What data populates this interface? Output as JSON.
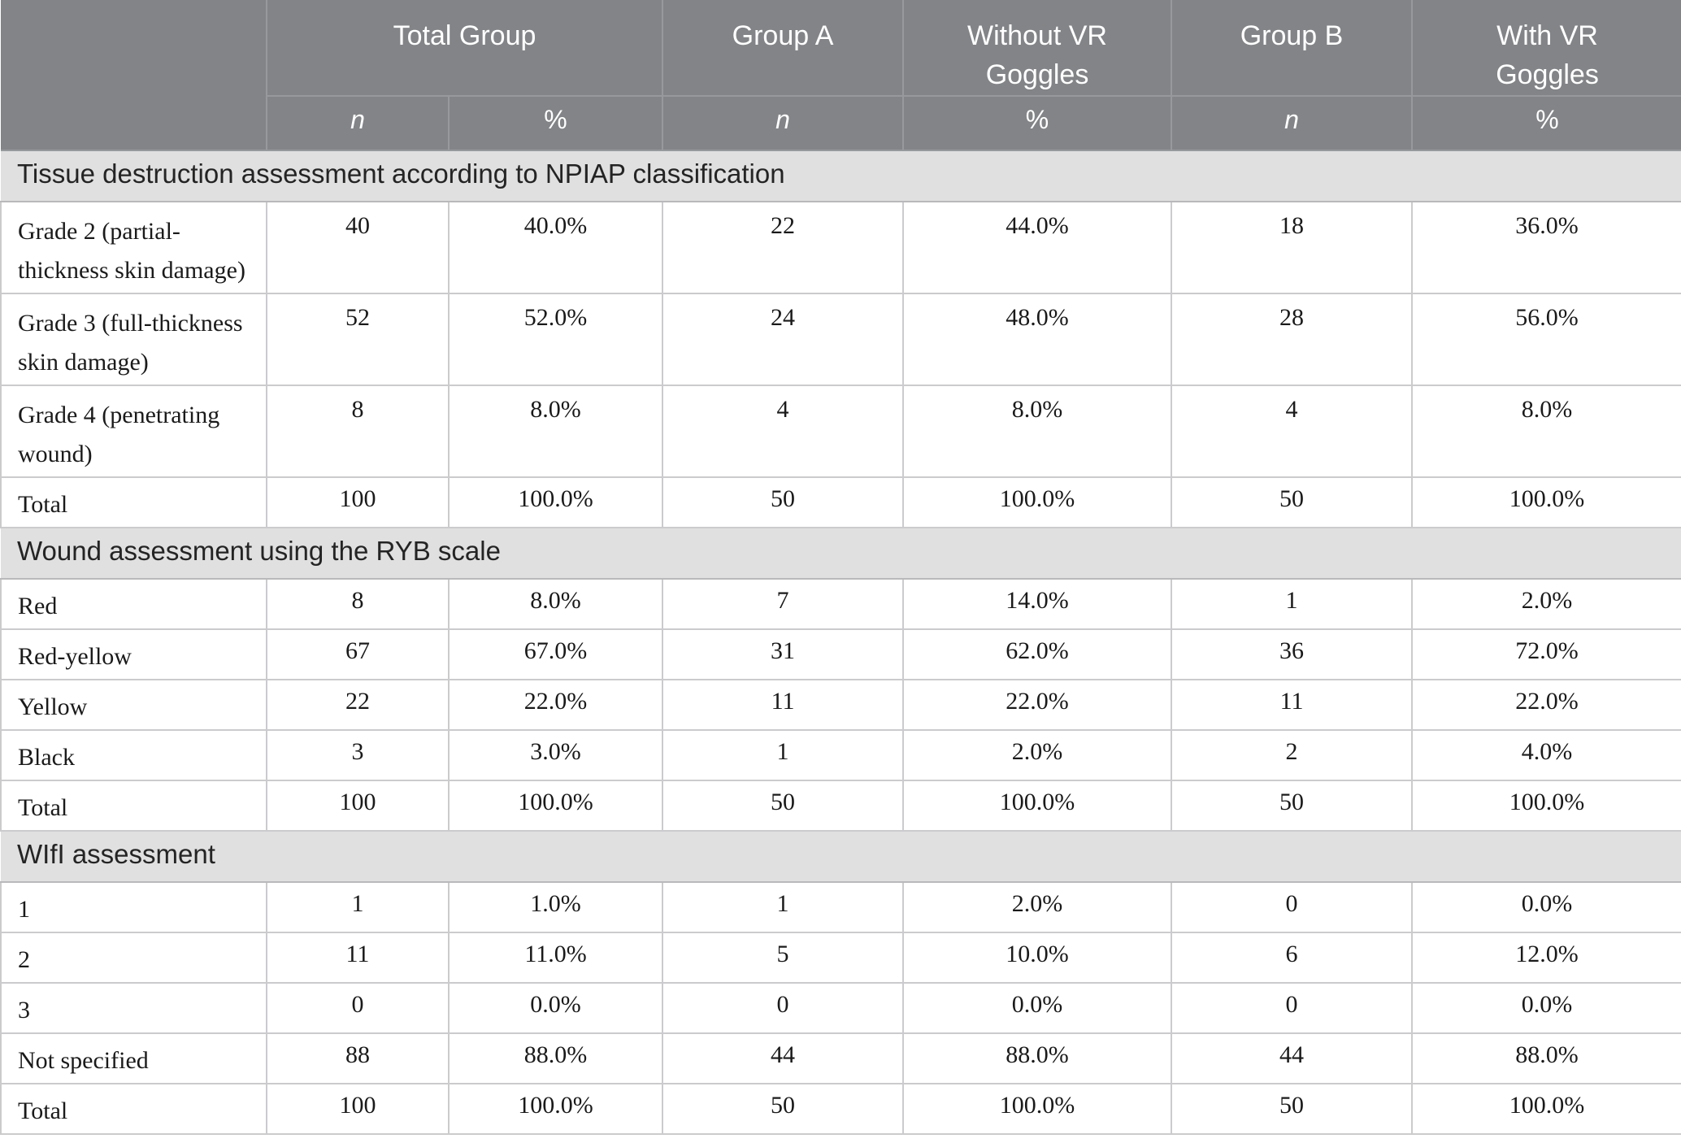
{
  "header": {
    "corner": "",
    "groups": [
      {
        "label": "Total Group"
      },
      {
        "label": "Group A"
      },
      {
        "label": "Without VR\nGoggles"
      },
      {
        "label": "Group B"
      },
      {
        "label": "With VR\nGoggles"
      }
    ],
    "subheaders": [
      "n",
      "%",
      "n",
      "%",
      "n",
      "%"
    ]
  },
  "sections": [
    {
      "title": "Tissue destruction assessment according to NPIAP classification",
      "rows": [
        {
          "label": "Grade 2 (partial-\nthickness skin damage)",
          "values": [
            "40",
            "40.0%",
            "22",
            "44.0%",
            "18",
            "36.0%"
          ]
        },
        {
          "label": "Grade 3 (full-thickness\nskin damage)",
          "values": [
            "52",
            "52.0%",
            "24",
            "48.0%",
            "28",
            "56.0%"
          ]
        },
        {
          "label": "Grade 4 (penetrating\nwound)",
          "values": [
            "8",
            "8.0%",
            "4",
            "8.0%",
            "4",
            "8.0%"
          ]
        },
        {
          "label": "Total",
          "values": [
            "100",
            "100.0%",
            "50",
            "100.0%",
            "50",
            "100.0%"
          ]
        }
      ]
    },
    {
      "title": "Wound assessment using the RYB scale",
      "rows": [
        {
          "label": "Red",
          "values": [
            "8",
            "8.0%",
            "7",
            "14.0%",
            "1",
            "2.0%"
          ]
        },
        {
          "label": "Red-yellow",
          "values": [
            "67",
            "67.0%",
            "31",
            "62.0%",
            "36",
            "72.0%"
          ]
        },
        {
          "label": "Yellow",
          "values": [
            "22",
            "22.0%",
            "11",
            "22.0%",
            "11",
            "22.0%"
          ]
        },
        {
          "label": "Black",
          "values": [
            "3",
            "3.0%",
            "1",
            "2.0%",
            "2",
            "4.0%"
          ]
        },
        {
          "label": "Total",
          "values": [
            "100",
            "100.0%",
            "50",
            "100.0%",
            "50",
            "100.0%"
          ]
        }
      ]
    },
    {
      "title": "WIfI assessment",
      "rows": [
        {
          "label": "1",
          "values": [
            "1",
            "1.0%",
            "1",
            "2.0%",
            "0",
            "0.0%"
          ]
        },
        {
          "label": "2",
          "values": [
            "11",
            "11.0%",
            "5",
            "10.0%",
            "6",
            "12.0%"
          ]
        },
        {
          "label": "3",
          "values": [
            "0",
            "0.0%",
            "0",
            "0.0%",
            "0",
            "0.0%"
          ]
        },
        {
          "label": "Not specified",
          "values": [
            "88",
            "88.0%",
            "44",
            "88.0%",
            "44",
            "88.0%"
          ]
        },
        {
          "label": "Total",
          "values": [
            "100",
            "100.0%",
            "50",
            "100.0%",
            "50",
            "100.0%"
          ]
        }
      ]
    }
  ],
  "colors": {
    "header_bg": "#828487",
    "header_text": "#ffffff",
    "header_border": "#97999c",
    "section_bg": "#e0e0e1",
    "section_text": "#242424",
    "body_text": "#1a1a1a",
    "body_border": "#cbcbcd",
    "body_bg": "#ffffff"
  }
}
